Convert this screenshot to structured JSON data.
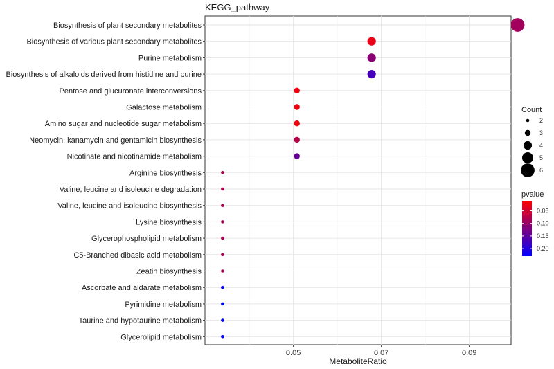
{
  "chart_data": {
    "type": "scatter",
    "title": "KEGG_pathway",
    "xlabel": "MetaboliteRatio",
    "ylabel": "",
    "xlim": [
      0.0299,
      0.0995
    ],
    "x_ticks": [
      "0.05",
      "0.07",
      "0.09"
    ],
    "x_tick_values": [
      0.05,
      0.07,
      0.09
    ],
    "grid": true,
    "points": [
      {
        "pathway": "Biosynthesis of plant secondary metabolites",
        "x": 0.101,
        "count": 6,
        "pvalue": 0.09
      },
      {
        "pathway": "Biosynthesis of various plant secondary metabolites",
        "x": 0.0678,
        "count": 4,
        "pvalue": 0.03
      },
      {
        "pathway": "Purine metabolism",
        "x": 0.0678,
        "count": 4,
        "pvalue": 0.11
      },
      {
        "pathway": "Biosynthesis of alkaloids derived from histidine and purine",
        "x": 0.0678,
        "count": 4,
        "pvalue": 0.17
      },
      {
        "pathway": "Pentose and glucuronate interconversions",
        "x": 0.0508,
        "count": 3,
        "pvalue": 0.02
      },
      {
        "pathway": "Galactose metabolism",
        "x": 0.0508,
        "count": 3,
        "pvalue": 0.02
      },
      {
        "pathway": "Amino sugar and nucleotide sugar metabolism",
        "x": 0.0508,
        "count": 3,
        "pvalue": 0.02
      },
      {
        "pathway": "Neomycin, kanamycin and gentamicin biosynthesis",
        "x": 0.0508,
        "count": 3,
        "pvalue": 0.07
      },
      {
        "pathway": "Nicotinate and nicotinamide metabolism",
        "x": 0.0508,
        "count": 3,
        "pvalue": 0.14
      },
      {
        "pathway": "Arginine biosynthesis",
        "x": 0.0339,
        "count": 2,
        "pvalue": 0.08
      },
      {
        "pathway": "Valine, leucine and isoleucine degradation",
        "x": 0.0339,
        "count": 2,
        "pvalue": 0.08
      },
      {
        "pathway": "Valine, leucine and isoleucine biosynthesis",
        "x": 0.0339,
        "count": 2,
        "pvalue": 0.08
      },
      {
        "pathway": "Lysine biosynthesis",
        "x": 0.0339,
        "count": 2,
        "pvalue": 0.08
      },
      {
        "pathway": "Glycerophospholipid metabolism",
        "x": 0.0339,
        "count": 2,
        "pvalue": 0.08
      },
      {
        "pathway": "C5-Branched dibasic acid metabolism",
        "x": 0.0339,
        "count": 2,
        "pvalue": 0.08
      },
      {
        "pathway": "Zeatin biosynthesis",
        "x": 0.0339,
        "count": 2,
        "pvalue": 0.08
      },
      {
        "pathway": "Ascorbate and aldarate metabolism",
        "x": 0.0339,
        "count": 2,
        "pvalue": 0.23
      },
      {
        "pathway": "Pyrimidine metabolism",
        "x": 0.0339,
        "count": 2,
        "pvalue": 0.23
      },
      {
        "pathway": "Taurine and hypotaurine metabolism",
        "x": 0.0339,
        "count": 2,
        "pvalue": 0.23
      },
      {
        "pathway": "Glycerolipid metabolism",
        "x": 0.0339,
        "count": 2,
        "pvalue": 0.23
      }
    ],
    "legend_count": {
      "title": "Count",
      "values": [
        2,
        3,
        4,
        5,
        6
      ],
      "labels": [
        "2",
        "3",
        "4",
        "5",
        "6"
      ]
    },
    "legend_pvalue": {
      "title": "pvalue",
      "range": [
        0.01,
        0.23
      ],
      "tick_values": [
        0.05,
        0.1,
        0.15,
        0.2
      ],
      "tick_labels": [
        "0.05",
        "0.10",
        "0.15",
        "0.20"
      ],
      "low_color": "#ff0000",
      "high_color": "#0000ff"
    },
    "legend_placement": "right"
  }
}
